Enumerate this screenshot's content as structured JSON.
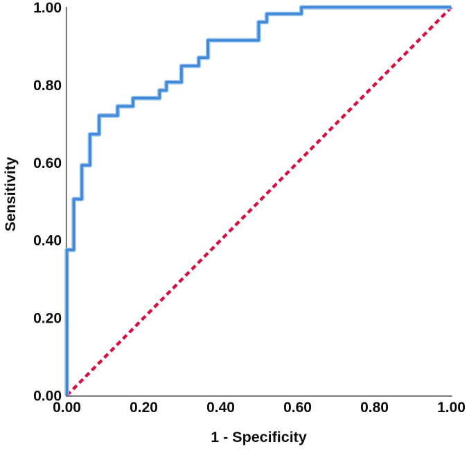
{
  "page": {
    "background": "#ffffff"
  },
  "chart_data": {
    "type": "line",
    "subtype": "roc-curve",
    "title": "",
    "xlabel": "1 - Specificity",
    "ylabel": "Sensitivity",
    "xlim": [
      0,
      1
    ],
    "ylim": [
      0,
      1
    ],
    "grid": false,
    "legend": "none",
    "axis_color": "#4c4c4c",
    "tick_text_color": "#0d0d0d",
    "tick_values": [
      0,
      0.2,
      0.4,
      0.6,
      0.8,
      1
    ],
    "x_tick_labels": [
      "0.00",
      "0.20",
      "0.40",
      "0.60",
      "0.80",
      "1.00"
    ],
    "y_tick_labels": [
      "0.00",
      "0.20",
      "0.40",
      "0.60",
      "0.80",
      "1.00"
    ],
    "series": [
      {
        "name": "ROC curve",
        "style": "step-solid",
        "color": "#4288d9",
        "halo_color": "#9ec7ee",
        "points": [
          [
            0,
            0
          ],
          [
            0,
            0.375
          ],
          [
            0.018,
            0.375
          ],
          [
            0.018,
            0.506
          ],
          [
            0.039,
            0.506
          ],
          [
            0.039,
            0.593
          ],
          [
            0.06,
            0.593
          ],
          [
            0.06,
            0.673
          ],
          [
            0.084,
            0.673
          ],
          [
            0.084,
            0.721
          ],
          [
            0.132,
            0.721
          ],
          [
            0.132,
            0.745
          ],
          [
            0.172,
            0.745
          ],
          [
            0.172,
            0.766
          ],
          [
            0.241,
            0.766
          ],
          [
            0.241,
            0.786
          ],
          [
            0.259,
            0.786
          ],
          [
            0.259,
            0.807
          ],
          [
            0.298,
            0.807
          ],
          [
            0.298,
            0.849
          ],
          [
            0.343,
            0.849
          ],
          [
            0.343,
            0.87
          ],
          [
            0.367,
            0.87
          ],
          [
            0.367,
            0.915
          ],
          [
            0.499,
            0.915
          ],
          [
            0.499,
            0.962
          ],
          [
            0.52,
            0.962
          ],
          [
            0.52,
            0.983
          ],
          [
            0.61,
            0.983
          ],
          [
            0.61,
            1
          ],
          [
            1,
            1
          ]
        ]
      },
      {
        "name": "Reference diagonal",
        "style": "dashed",
        "color": "#d60f3f",
        "points": [
          [
            0,
            0
          ],
          [
            1,
            1
          ]
        ]
      }
    ]
  }
}
